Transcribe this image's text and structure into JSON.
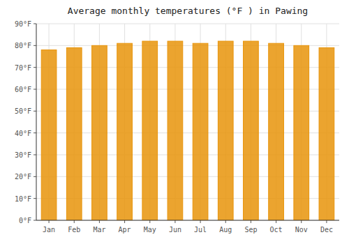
{
  "chart_data": {
    "type": "bar",
    "title": "Average monthly temperatures (°F ) in Pawing",
    "categories": [
      "Jan",
      "Feb",
      "Mar",
      "Apr",
      "May",
      "Jun",
      "Jul",
      "Aug",
      "Sep",
      "Oct",
      "Nov",
      "Dec"
    ],
    "values": [
      78,
      79,
      80,
      81,
      82,
      82,
      81,
      82,
      82,
      81,
      80,
      79
    ],
    "color": "#E8940A",
    "ylim": [
      0,
      90
    ],
    "yticks": [
      {
        "value": 0,
        "label": "0°F"
      },
      {
        "value": 10,
        "label": "10°F"
      },
      {
        "value": 20,
        "label": "20°F"
      },
      {
        "value": 30,
        "label": "30°F"
      },
      {
        "value": 40,
        "label": "40°F"
      },
      {
        "value": 50,
        "label": "50°F"
      },
      {
        "value": 60,
        "label": "60°F"
      },
      {
        "value": 70,
        "label": "70°F"
      },
      {
        "value": 80,
        "label": "80°F"
      },
      {
        "value": 90,
        "label": "90°F"
      }
    ],
    "grid": true
  }
}
